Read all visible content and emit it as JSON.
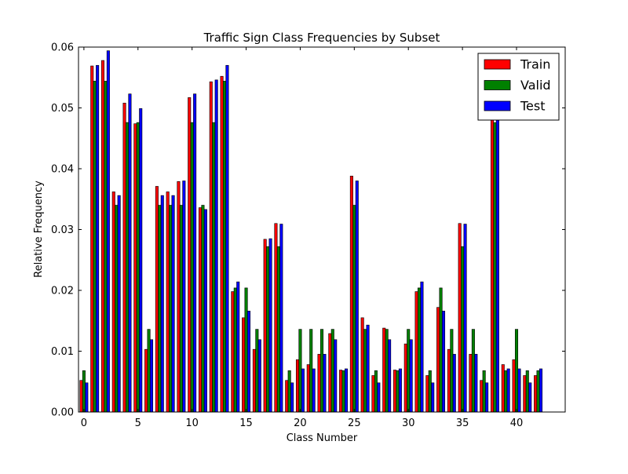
{
  "chart_data": {
    "type": "bar",
    "title": "Traffic Sign Class Frequencies by Subset",
    "xlabel": "Class Number",
    "ylabel": "Relative Frequency",
    "xlim": [
      -0.5,
      44.5
    ],
    "ylim": [
      0,
      0.06
    ],
    "xticks": [
      0,
      5,
      10,
      15,
      20,
      25,
      30,
      35,
      40
    ],
    "yticks": [
      0.0,
      0.01,
      0.02,
      0.03,
      0.04,
      0.05,
      0.06
    ],
    "ytick_labels": [
      "0.00",
      "0.01",
      "0.02",
      "0.03",
      "0.04",
      "0.05",
      "0.06"
    ],
    "legend_position": "top-right",
    "grid": false,
    "x": [
      0,
      1,
      2,
      3,
      4,
      5,
      6,
      7,
      8,
      9,
      10,
      11,
      12,
      13,
      14,
      15,
      16,
      17,
      18,
      19,
      20,
      21,
      22,
      23,
      24,
      25,
      26,
      27,
      28,
      29,
      30,
      31,
      32,
      33,
      34,
      35,
      36,
      37,
      38,
      39,
      40,
      41,
      42
    ],
    "series": [
      {
        "name": "Train",
        "color": "#ff0000",
        "values": [
          0.0052,
          0.0569,
          0.0578,
          0.0362,
          0.0508,
          0.0474,
          0.0103,
          0.0371,
          0.0362,
          0.0379,
          0.0517,
          0.0336,
          0.0543,
          0.0552,
          0.0198,
          0.0155,
          0.0103,
          0.0284,
          0.031,
          0.0052,
          0.0086,
          0.0078,
          0.0095,
          0.0129,
          0.0069,
          0.0388,
          0.0155,
          0.006,
          0.0138,
          0.0069,
          0.0112,
          0.0198,
          0.006,
          0.0172,
          0.0103,
          0.031,
          0.0095,
          0.0052,
          0.0535,
          0.0078,
          0.0086,
          0.006,
          0.006
        ]
      },
      {
        "name": "Valid",
        "color": "#008000",
        "values": [
          0.0068,
          0.0544,
          0.0544,
          0.034,
          0.0476,
          0.0476,
          0.0136,
          0.034,
          0.034,
          0.034,
          0.0476,
          0.034,
          0.0476,
          0.0544,
          0.0204,
          0.0204,
          0.0136,
          0.0272,
          0.0272,
          0.0068,
          0.0136,
          0.0136,
          0.0136,
          0.0136,
          0.0068,
          0.034,
          0.0136,
          0.0068,
          0.0136,
          0.0068,
          0.0136,
          0.0204,
          0.0068,
          0.0204,
          0.0136,
          0.0272,
          0.0136,
          0.0068,
          0.0476,
          0.0068,
          0.0136,
          0.0068,
          0.0068
        ]
      },
      {
        "name": "Test",
        "color": "#0000ff",
        "values": [
          0.0048,
          0.057,
          0.0594,
          0.0356,
          0.0523,
          0.0499,
          0.0119,
          0.0356,
          0.0356,
          0.038,
          0.0523,
          0.0333,
          0.0546,
          0.057,
          0.0214,
          0.0166,
          0.0119,
          0.0285,
          0.0309,
          0.0048,
          0.0071,
          0.0071,
          0.0095,
          0.0119,
          0.0071,
          0.038,
          0.0143,
          0.0048,
          0.0119,
          0.0071,
          0.0119,
          0.0214,
          0.0048,
          0.0166,
          0.0095,
          0.0309,
          0.0095,
          0.0048,
          0.0546,
          0.0071,
          0.0071,
          0.0048,
          0.0071
        ]
      }
    ]
  }
}
